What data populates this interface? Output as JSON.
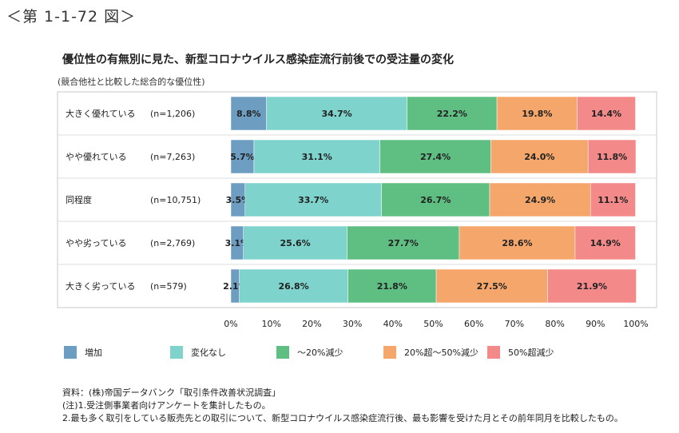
{
  "figure_label": "＜第 1-1-72 図＞",
  "chart_data": {
    "type": "bar",
    "stacked": true,
    "orientation": "horizontal",
    "title": "優位性の有無別に見た、新型コロナウイルス感染症流行前後での受注量の変化",
    "subtitle": "(競合他社と比較した総合的な優位性)",
    "categories": [
      "大きく優れている",
      "やや優れている",
      "同程度",
      "やや劣っている",
      "大きく劣っている"
    ],
    "sample_sizes": [
      "(n=1,206)",
      "(n=7,263)",
      "(n=10,751)",
      "(n=2,769)",
      "(n=579)"
    ],
    "series": [
      {
        "name": "増加",
        "color": "#6d9ec2",
        "values": [
          8.8,
          5.7,
          3.5,
          3.1,
          2.1
        ]
      },
      {
        "name": "変化なし",
        "color": "#7fd3cd",
        "values": [
          34.7,
          31.1,
          33.7,
          25.6,
          26.8
        ]
      },
      {
        "name": "～20%減少",
        "color": "#5fbf82",
        "values": [
          22.2,
          27.4,
          26.7,
          27.7,
          21.8
        ]
      },
      {
        "name": "20%超～50%減少",
        "color": "#f5a66b",
        "values": [
          19.8,
          24.0,
          24.9,
          28.6,
          27.5
        ]
      },
      {
        "name": "50%超減少",
        "color": "#f4898a",
        "values": [
          14.4,
          11.8,
          11.1,
          14.9,
          21.9
        ]
      }
    ],
    "x_ticks": [
      "0%",
      "10%",
      "20%",
      "30%",
      "40%",
      "50%",
      "60%",
      "70%",
      "80%",
      "90%",
      "100%"
    ],
    "xlim": [
      0,
      100
    ],
    "legend_position": "bottom"
  },
  "notes": [
    "資料：(株)帝国データバンク「取引条件改善状況調査」",
    "(注)1.受注側事業者向けアンケートを集計したもの。",
    "2.最も多く取引をしている販売先との取引について、新型コロナウイルス感染症流行後、最も影響を受けた月とその前年同月を比較したもの。"
  ]
}
